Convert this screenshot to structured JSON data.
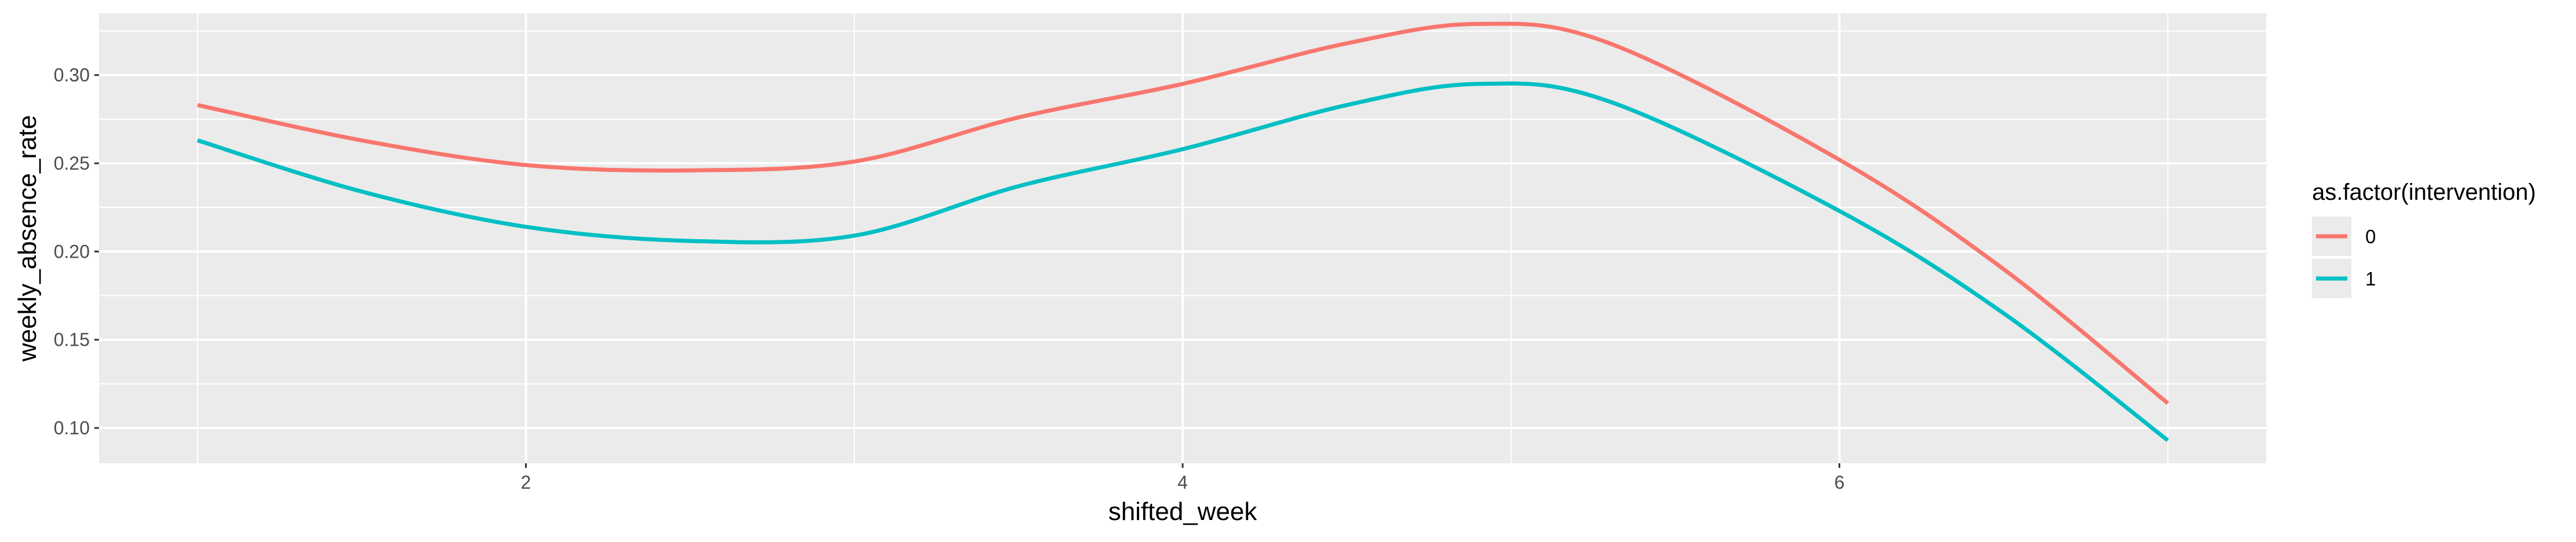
{
  "chart_data": {
    "type": "line",
    "title": "",
    "xlabel": "shifted_week",
    "ylabel": "weekly_absence_rate",
    "xlim": [
      0.7,
      7.3
    ],
    "ylim": [
      0.08,
      0.335
    ],
    "x_ticks": [
      2,
      4,
      6
    ],
    "x_tick_labels": [
      "2",
      "4",
      "6"
    ],
    "y_ticks": [
      0.1,
      0.15,
      0.2,
      0.25,
      0.3
    ],
    "y_tick_labels": [
      "0.10",
      "0.15",
      "0.20",
      "0.25",
      "0.30"
    ],
    "grid": true,
    "legend": {
      "title": "as.factor(intervention)",
      "position": "right"
    },
    "series": [
      {
        "name": "0",
        "color": "#F8766D",
        "x": [
          1,
          1.5,
          2,
          2.5,
          3,
          3.5,
          4,
          4.5,
          4.9,
          5.3,
          6,
          6.5,
          7
        ],
        "y": [
          0.283,
          0.263,
          0.249,
          0.246,
          0.251,
          0.276,
          0.295,
          0.318,
          0.329,
          0.318,
          0.252,
          0.19,
          0.114
        ]
      },
      {
        "name": "1",
        "color": "#00BFC4",
        "x": [
          1,
          1.5,
          2,
          2.5,
          3,
          3.5,
          4,
          4.5,
          4.9,
          5.3,
          6,
          6.5,
          7
        ],
        "y": [
          0.263,
          0.234,
          0.214,
          0.206,
          0.209,
          0.237,
          0.258,
          0.283,
          0.295,
          0.285,
          0.223,
          0.165,
          0.093
        ]
      }
    ]
  }
}
